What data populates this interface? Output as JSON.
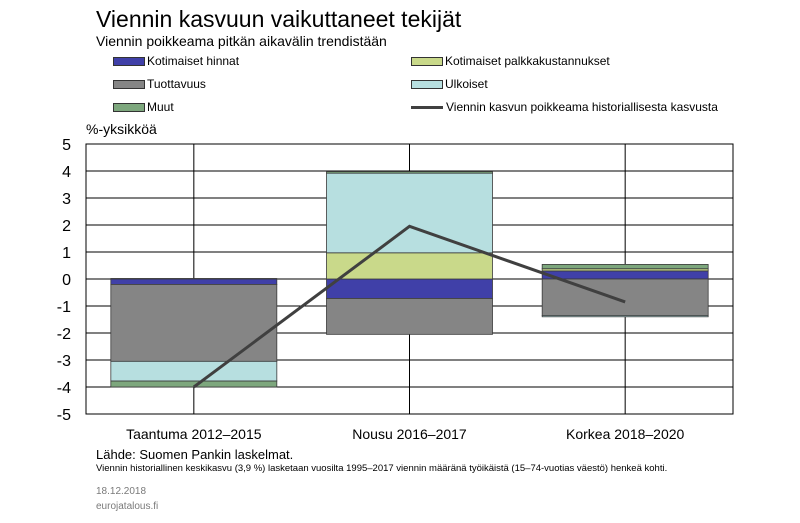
{
  "title": "Viennin kasvuun vaikuttaneet tekijät",
  "subtitle": "Viennin poikkeama pitkän aikavälin trendistään",
  "unit_label": "%-yksikköä",
  "source": "Lähde: Suomen Pankin laskelmat.",
  "note": "Viennin historiallinen keskikasvu (3,9 %) lasketaan vuosilta 1995–2017 viennin määränä työikäistä (15–74-vuotias väestö) henkeä kohti.",
  "date": "18.12.2018",
  "site": "eurojatalous.fi",
  "chart_data": {
    "type": "bar",
    "stacked": true,
    "title": "Viennin kasvuun vaikuttaneet tekijät",
    "subtitle": "Viennin poikkeama pitkän aikavälin trendistään",
    "ylabel": "%-yksikköä",
    "ylim": [
      -5,
      5
    ],
    "yticks": [
      5,
      4,
      3,
      2,
      1,
      0,
      -1,
      -2,
      -3,
      -4,
      -5
    ],
    "grid": true,
    "legend_position": "top",
    "categories": [
      "Taantuma 2012–2015",
      "Nousu 2016–2017",
      "Korkea 2018–2020"
    ],
    "series": [
      {
        "name": "Kotimaiset hinnat",
        "color": "#4040a8",
        "values": [
          -0.2,
          -0.72,
          0.3
        ]
      },
      {
        "name": "Kotimaiset palkkakustannukset",
        "color": "#c9d98a",
        "values": [
          0.02,
          0.97,
          0.08
        ]
      },
      {
        "name": "Tuottavuus",
        "color": "#858585",
        "values": [
          -2.85,
          -1.33,
          -1.35
        ]
      },
      {
        "name": "Ulkoiset",
        "color": "#b7dfe0",
        "values": [
          -0.73,
          2.95,
          -0.05
        ]
      },
      {
        "name": "Muut",
        "color": "#7da77d",
        "values": [
          -0.22,
          0.06,
          0.16
        ]
      }
    ],
    "line": {
      "name": "Viennin kasvun poikkeama historiallisesta kasvusta",
      "color": "#404040",
      "values": [
        -4.0,
        1.95,
        -0.85
      ]
    }
  }
}
